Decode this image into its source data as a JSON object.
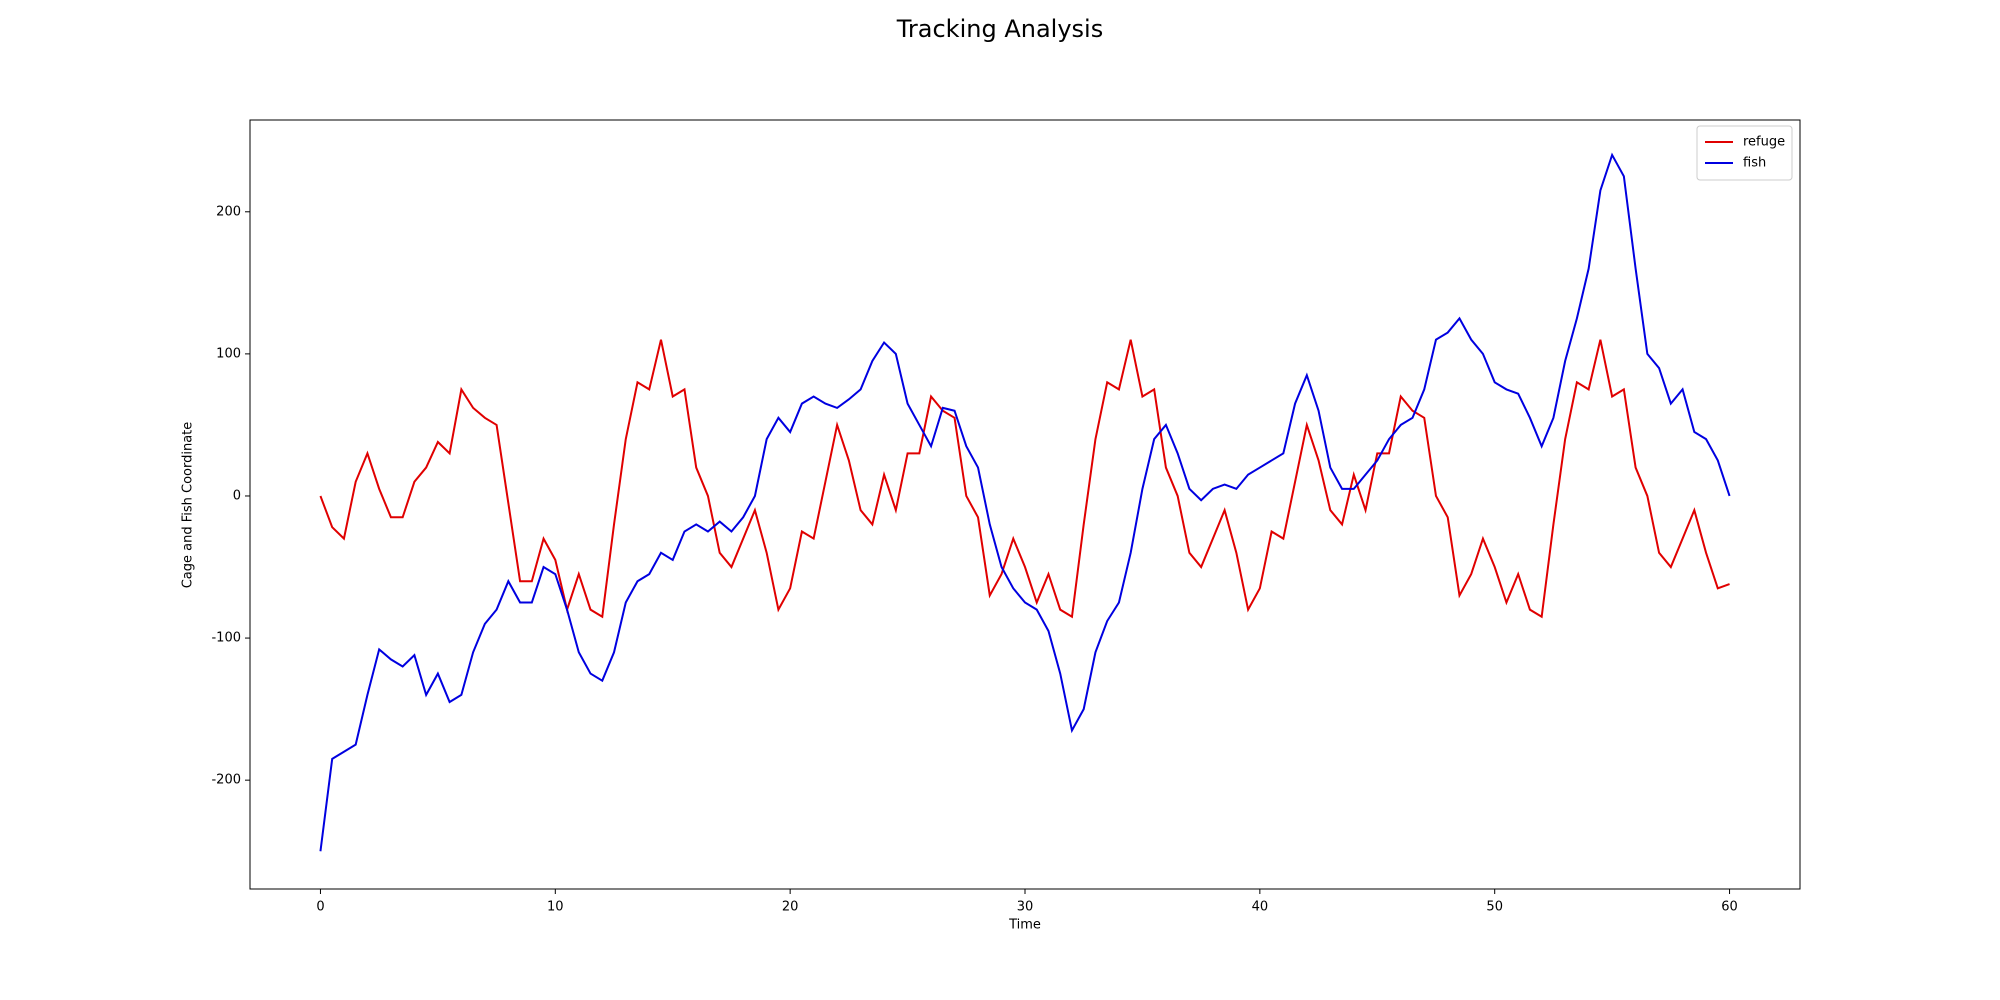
{
  "chart_data": {
    "type": "line",
    "title": "Tracking Analysis",
    "x_label": "Time",
    "y_label": "Cage and Fish Coordinate",
    "x": [
      0,
      0.5,
      1,
      1.5,
      2,
      2.5,
      3,
      3.5,
      4,
      4.5,
      5,
      5.5,
      6,
      6.5,
      7,
      7.5,
      8,
      8.5,
      9,
      9.5,
      10,
      10.5,
      11,
      11.5,
      12,
      12.5,
      13,
      13.5,
      14,
      14.5,
      15,
      15.5,
      16,
      16.5,
      17,
      17.5,
      18,
      18.5,
      19,
      19.5,
      20,
      20.5,
      21,
      21.5,
      22,
      22.5,
      23,
      23.5,
      24,
      24.5,
      25,
      25.5,
      26,
      26.5,
      27,
      27.5,
      28,
      28.5,
      29,
      29.5,
      30,
      30.5,
      31,
      31.5,
      32,
      32.5,
      33,
      33.5,
      34,
      34.5,
      35,
      35.5,
      36,
      36.5,
      37,
      37.5,
      38,
      38.5,
      39,
      39.5,
      40,
      40.5,
      41,
      41.5,
      42,
      42.5,
      43,
      43.5,
      44,
      44.5,
      45,
      45.5,
      46,
      46.5,
      47,
      47.5,
      48,
      48.5,
      49,
      49.5,
      50,
      50.5,
      51,
      51.5,
      52,
      52.5,
      53,
      53.5,
      54,
      54.5,
      55,
      55.5,
      56,
      56.5,
      57,
      57.5,
      58,
      58.5,
      59,
      59.5,
      60
    ],
    "series": [
      {
        "name": "refuge",
        "color": "#e00000",
        "values": [
          0,
          -22,
          -30,
          10,
          30,
          5,
          -15,
          -15,
          10,
          20,
          38,
          30,
          75,
          62,
          55,
          50,
          -5,
          -60,
          -60,
          -30,
          -45,
          -80,
          -55,
          -80,
          -85,
          -20,
          40,
          80,
          75,
          110,
          70,
          75,
          20,
          0,
          -40,
          -50,
          -30,
          -10,
          -40,
          -80,
          -65,
          -25,
          -30,
          10,
          50,
          25,
          -10,
          -20,
          15,
          -10,
          30,
          30,
          70,
          60,
          55,
          0,
          -15,
          -70,
          -55,
          -30,
          -50,
          -75,
          -55,
          -80,
          -85,
          -20,
          40,
          80,
          75,
          110,
          70,
          75,
          20,
          0,
          -40,
          -50,
          -30,
          -10,
          -40,
          -80,
          -65,
          -25,
          -30,
          10,
          50,
          25,
          -10,
          -20,
          15,
          -10,
          30,
          30,
          70,
          60,
          55,
          0,
          -15,
          -70,
          -55,
          -30,
          -50,
          -75,
          -55,
          -80,
          -85,
          -20,
          40,
          80,
          75,
          110,
          70,
          75,
          20,
          0,
          -40,
          -50,
          -30,
          -10,
          -40,
          -65,
          -62
        ]
      },
      {
        "name": "fish",
        "color": "#0000e0",
        "values": [
          -250,
          -185,
          -180,
          -175,
          -140,
          -108,
          -115,
          -120,
          -112,
          -140,
          -125,
          -145,
          -140,
          -110,
          -90,
          -80,
          -60,
          -75,
          -75,
          -50,
          -55,
          -80,
          -110,
          -125,
          -130,
          -110,
          -75,
          -60,
          -55,
          -40,
          -45,
          -25,
          -20,
          -25,
          -18,
          -25,
          -15,
          0,
          40,
          55,
          45,
          65,
          70,
          65,
          62,
          68,
          75,
          95,
          108,
          100,
          65,
          50,
          35,
          62,
          60,
          35,
          20,
          -20,
          -50,
          -65,
          -75,
          -80,
          -95,
          -125,
          -165,
          -150,
          -110,
          -88,
          -75,
          -40,
          5,
          40,
          50,
          30,
          5,
          -3,
          5,
          8,
          5,
          15,
          20,
          25,
          30,
          65,
          85,
          60,
          20,
          5,
          5,
          15,
          25,
          40,
          50,
          55,
          75,
          110,
          115,
          125,
          110,
          100,
          80,
          75,
          72,
          55,
          35,
          55,
          95,
          125,
          160,
          215,
          240,
          225,
          160,
          100,
          90,
          65,
          75,
          45,
          40,
          25,
          0
        ]
      }
    ],
    "xlim": [
      -3,
      63
    ],
    "ylim": [
      -276.6,
      264.6
    ],
    "xticks": [
      0,
      10,
      20,
      30,
      40,
      50,
      60
    ],
    "yticks": [
      -200,
      -100,
      0,
      100,
      200
    ],
    "grid": false,
    "legend": "upper right"
  }
}
